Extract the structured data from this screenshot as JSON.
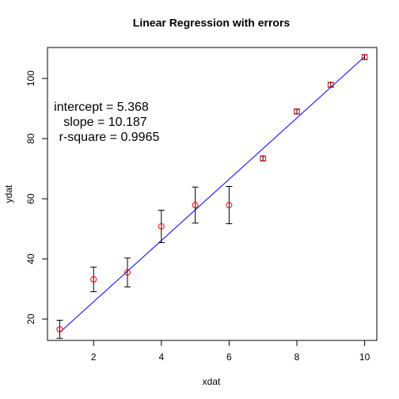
{
  "chart_data": {
    "type": "scatter",
    "title": "Linear Regression with errors",
    "x_label": "xdat",
    "y_label": "ydat",
    "x": [
      1,
      2,
      3,
      4,
      5,
      6,
      7,
      8,
      9,
      10
    ],
    "values": [
      16.6,
      33.2,
      35.5,
      50.8,
      57.9,
      57.9,
      73.4,
      89,
      97.9,
      107.1
    ],
    "errors": [
      3,
      4.1,
      4.8,
      5.4,
      6,
      6.2,
      0.8,
      0.8,
      0.8,
      0.8
    ],
    "color": "#ff0000",
    "error_color": "#000000",
    "line_color": "#0000ff",
    "regression": {
      "intercept": {
        "value": 5.368,
        "label": "intercept =  5.368"
      },
      "slope": {
        "value": 10.187,
        "label": "slope =  10.187"
      },
      "r_square": {
        "value": 0.9965,
        "label": "r-square =  0.9965"
      }
    },
    "xlim": [
      0.64,
      10.36
    ],
    "ylim": [
      12.9,
      110.3
    ],
    "xticks": [
      2,
      4,
      6,
      8,
      10
    ],
    "yticks": [
      20,
      40,
      60,
      80,
      100
    ],
    "grid": false
  }
}
